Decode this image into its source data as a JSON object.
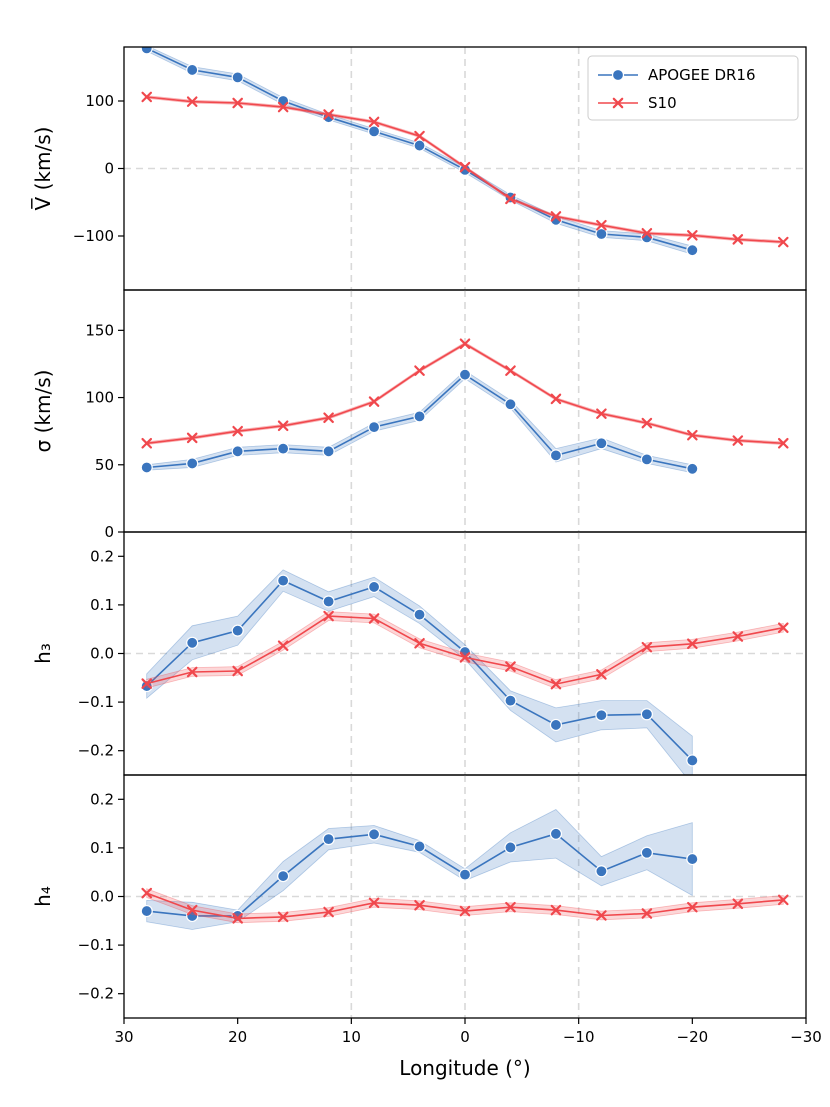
{
  "chart_data": [
    {
      "type": "line",
      "panel": "velocity",
      "ylabel": "V̅  (km/s)",
      "ylim": [
        -180,
        180
      ],
      "yticks": [
        -100,
        0,
        100
      ],
      "yticklabels": [
        "−100",
        "0",
        "100"
      ],
      "xlim": [
        30,
        -30
      ],
      "grid": "dashed reference lines at x = 10, 0, −10 and y = 0",
      "series": [
        {
          "name": "APOGEE DR16",
          "color": "#3a75be",
          "marker": "circle",
          "x": [
            28,
            24,
            20,
            16,
            12,
            8,
            4,
            0,
            -4,
            -8,
            -12,
            -16,
            -20
          ],
          "y": [
            178,
            146,
            135,
            100,
            76,
            55,
            34,
            -2,
            -43,
            -76,
            -97,
            -102,
            -121
          ],
          "band": [
            4,
            5,
            5,
            5,
            4,
            4,
            4,
            4,
            4,
            5,
            5,
            5,
            6
          ]
        },
        {
          "name": "S10",
          "color": "#f0484d",
          "marker": "x",
          "x": [
            28,
            24,
            20,
            16,
            12,
            8,
            4,
            0,
            -4,
            -8,
            -12,
            -16,
            -20,
            -24,
            -28
          ],
          "y": [
            106,
            99,
            97,
            91,
            80,
            69,
            48,
            2,
            -45,
            -71,
            -84,
            -96,
            -99,
            -105,
            -109
          ],
          "band": [
            2,
            2,
            2,
            2,
            2,
            2,
            2,
            2,
            2,
            2,
            2,
            2,
            2,
            2,
            2
          ]
        }
      ]
    },
    {
      "type": "line",
      "panel": "dispersion",
      "ylabel": "σ  (km/s)",
      "ylim": [
        0,
        180
      ],
      "yticks": [
        0,
        50,
        100,
        150
      ],
      "yticklabels": [
        "0",
        "50",
        "100",
        "150"
      ],
      "xlim": [
        30,
        -30
      ],
      "series": [
        {
          "name": "APOGEE DR16",
          "color": "#3a75be",
          "marker": "circle",
          "x": [
            28,
            24,
            20,
            16,
            12,
            8,
            4,
            0,
            -4,
            -8,
            -12,
            -16,
            -20
          ],
          "y": [
            48,
            51,
            60,
            62,
            60,
            78,
            86,
            117,
            95,
            57,
            66,
            54,
            47
          ],
          "band": [
            2,
            3,
            3,
            3,
            3,
            3,
            3,
            3,
            3,
            5,
            4,
            3,
            3
          ]
        },
        {
          "name": "S10",
          "color": "#f0484d",
          "marker": "x",
          "x": [
            28,
            24,
            20,
            16,
            12,
            8,
            4,
            0,
            -4,
            -8,
            -12,
            -16,
            -20,
            -24,
            -28
          ],
          "y": [
            66,
            70,
            75,
            79,
            85,
            97,
            120,
            140,
            120,
            99,
            88,
            81,
            72,
            68,
            66
          ],
          "band": [
            1,
            1,
            1,
            1,
            1,
            1,
            1,
            1,
            1,
            1,
            1,
            1,
            1,
            1,
            1
          ]
        }
      ]
    },
    {
      "type": "line",
      "panel": "h3",
      "ylabel": "h₃",
      "ylim": [
        -0.25,
        0.25
      ],
      "yticks": [
        -0.2,
        -0.1,
        0.0,
        0.1,
        0.2
      ],
      "yticklabels": [
        "−0.2",
        "−0.1",
        "0.0",
        "0.1",
        "0.2"
      ],
      "xlim": [
        30,
        -30
      ],
      "series": [
        {
          "name": "APOGEE DR16",
          "color": "#3a75be",
          "marker": "circle",
          "x": [
            28,
            24,
            20,
            16,
            12,
            8,
            4,
            0,
            -4,
            -8,
            -12,
            -16,
            -20
          ],
          "y": [
            -0.067,
            0.022,
            0.047,
            0.15,
            0.107,
            0.137,
            0.08,
            0.003,
            -0.097,
            -0.147,
            -0.127,
            -0.125,
            -0.22
          ],
          "band": [
            0.025,
            0.035,
            0.03,
            0.022,
            0.02,
            0.02,
            0.018,
            0.015,
            0.02,
            0.035,
            0.03,
            0.028,
            0.05
          ]
        },
        {
          "name": "S10",
          "color": "#f0484d",
          "marker": "x",
          "x": [
            28,
            24,
            20,
            16,
            12,
            8,
            4,
            0,
            -4,
            -8,
            -12,
            -16,
            -20,
            -24,
            -28
          ],
          "y": [
            -0.062,
            -0.038,
            -0.036,
            0.016,
            0.077,
            0.072,
            0.021,
            -0.008,
            -0.027,
            -0.063,
            -0.043,
            0.013,
            0.02,
            0.035,
            0.053
          ],
          "band": [
            0.009,
            0.009,
            0.009,
            0.009,
            0.009,
            0.009,
            0.009,
            0.009,
            0.009,
            0.009,
            0.009,
            0.009,
            0.009,
            0.009,
            0.009
          ]
        }
      ]
    },
    {
      "type": "line",
      "panel": "h4",
      "ylabel": "h₄",
      "ylim": [
        -0.25,
        0.25
      ],
      "yticks": [
        -0.2,
        -0.1,
        0.0,
        0.1,
        0.2
      ],
      "yticklabels": [
        "−0.2",
        "−0.1",
        "0.0",
        "0.1",
        "0.2"
      ],
      "xlabel": "Longitude   (°)",
      "xticks": [
        30,
        20,
        10,
        0,
        -10,
        -20,
        -30
      ],
      "xticklabels": [
        "30",
        "20",
        "10",
        "0",
        "−10",
        "−20",
        "−30"
      ],
      "xlim": [
        30,
        -30
      ],
      "series": [
        {
          "name": "APOGEE DR16",
          "color": "#3a75be",
          "marker": "circle",
          "x": [
            28,
            24,
            20,
            16,
            12,
            8,
            4,
            0,
            -4,
            -8,
            -12,
            -16,
            -20
          ],
          "y": [
            -0.03,
            -0.04,
            -0.04,
            0.042,
            0.118,
            0.128,
            0.103,
            0.045,
            0.101,
            0.129,
            0.052,
            0.09,
            0.077
          ],
          "band": [
            0.022,
            0.028,
            0.012,
            0.03,
            0.022,
            0.018,
            0.012,
            0.012,
            0.03,
            0.05,
            0.03,
            0.035,
            0.075
          ]
        },
        {
          "name": "S10",
          "color": "#f0484d",
          "marker": "x",
          "x": [
            28,
            24,
            20,
            16,
            12,
            8,
            4,
            0,
            -4,
            -8,
            -12,
            -16,
            -20,
            -24,
            -28
          ],
          "y": [
            0.007,
            -0.028,
            -0.045,
            -0.042,
            -0.032,
            -0.013,
            -0.018,
            -0.03,
            -0.022,
            -0.028,
            -0.039,
            -0.035,
            -0.022,
            -0.015,
            -0.007
          ],
          "band": [
            0.009,
            0.009,
            0.009,
            0.009,
            0.009,
            0.009,
            0.009,
            0.009,
            0.009,
            0.009,
            0.009,
            0.009,
            0.009,
            0.009,
            0.009
          ]
        }
      ]
    }
  ],
  "legend": {
    "location": "top-right of top panel",
    "entries": [
      {
        "label": "APOGEE DR16",
        "color": "#3a75be",
        "marker": "circle"
      },
      {
        "label": "S10",
        "color": "#f0484d",
        "marker": "x"
      }
    ]
  }
}
